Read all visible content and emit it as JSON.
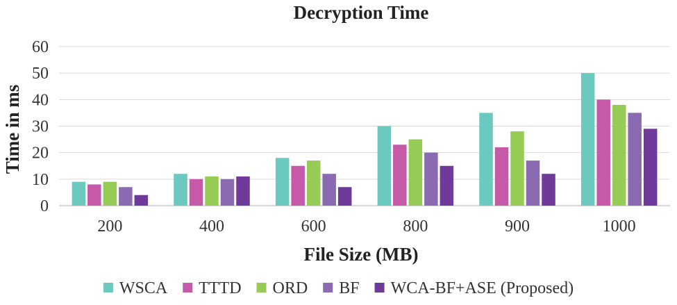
{
  "chart_data": {
    "type": "bar",
    "title": "Decryption Time",
    "xlabel": "File Size (MB)",
    "ylabel": "Time in ms",
    "ylim": [
      0,
      60
    ],
    "yticks": [
      0,
      10,
      20,
      30,
      40,
      50,
      60
    ],
    "grid": true,
    "legend_position": "bottom",
    "categories": [
      "200",
      "400",
      "600",
      "800",
      "900",
      "1000"
    ],
    "series": [
      {
        "name": "WSCA",
        "color": "#6cc9c0",
        "values": [
          9,
          12,
          18,
          30,
          35,
          50
        ]
      },
      {
        "name": "TTTD",
        "color": "#c65aa8",
        "values": [
          8,
          10,
          15,
          23,
          22,
          40
        ]
      },
      {
        "name": "ORD",
        "color": "#96cb55",
        "values": [
          9,
          11,
          17,
          25,
          28,
          38
        ]
      },
      {
        "name": "BF",
        "color": "#8a6ab0",
        "values": [
          7,
          10,
          12,
          20,
          17,
          35
        ]
      },
      {
        "name": "WCA-BF+ASE (Proposed)",
        "color": "#703a9a",
        "values": [
          4,
          11,
          7,
          15,
          12,
          29
        ]
      }
    ]
  }
}
